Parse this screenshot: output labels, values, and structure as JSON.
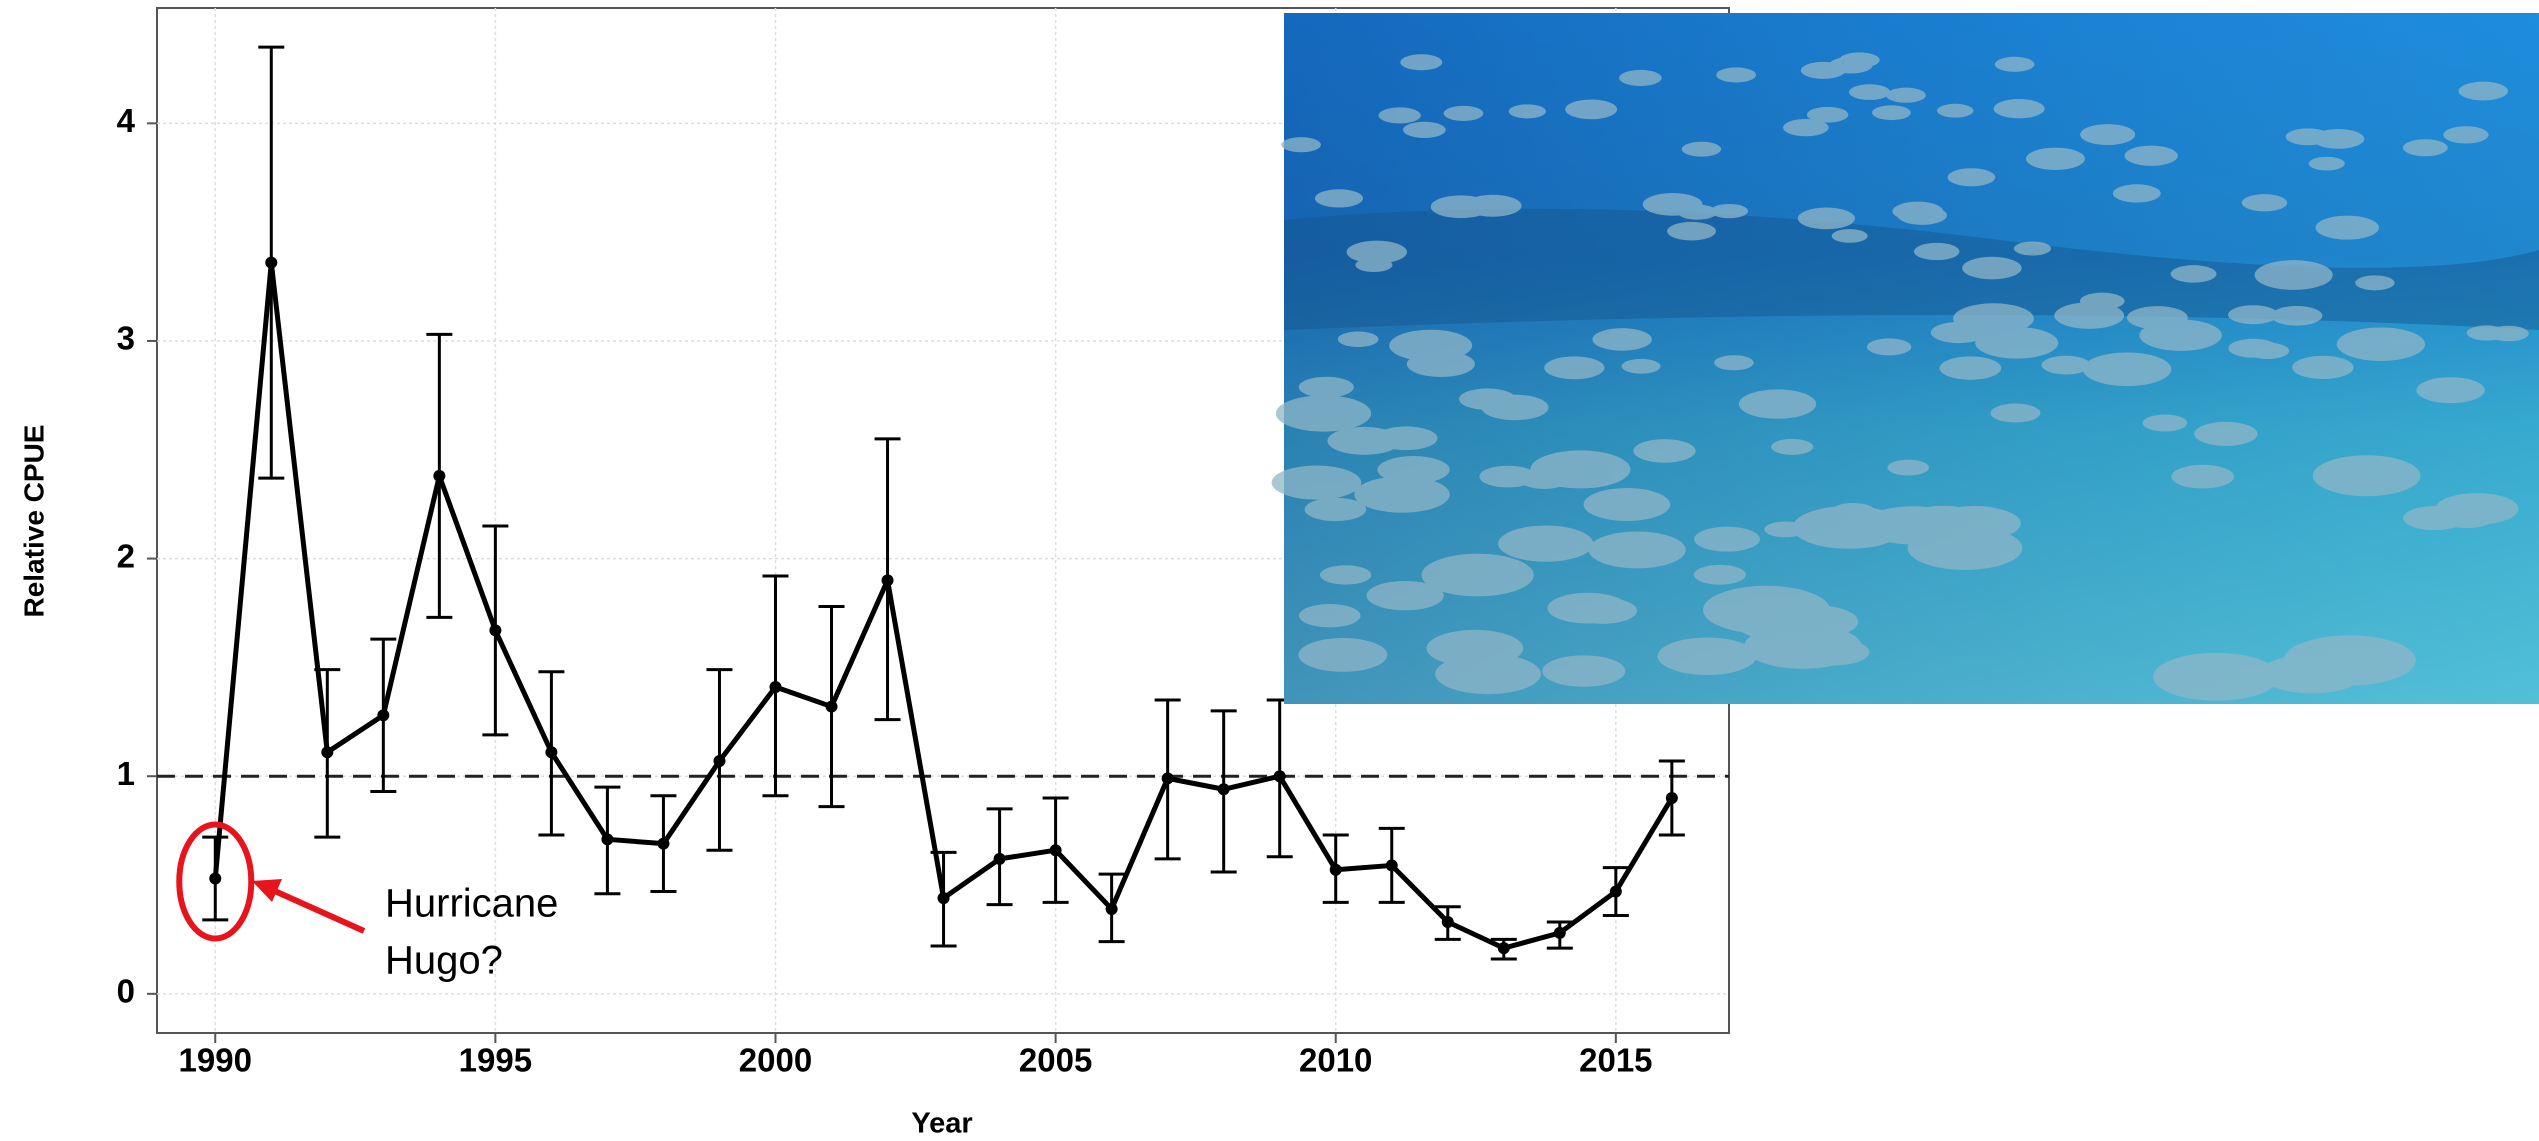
{
  "chart_data": {
    "type": "line",
    "xlabel": "Year",
    "ylabel": "Relative CPUE",
    "x": [
      1990,
      1991,
      1992,
      1993,
      1994,
      1995,
      1996,
      1997,
      1998,
      1999,
      2000,
      2001,
      2002,
      2003,
      2004,
      2005,
      2006,
      2007,
      2008,
      2009,
      2010,
      2011,
      2012,
      2013,
      2014,
      2015,
      2016
    ],
    "series": [
      {
        "color": "#000000",
        "values": [
          0.53,
          3.36,
          1.11,
          1.28,
          2.38,
          1.67,
          1.11,
          0.71,
          0.69,
          1.07,
          1.41,
          1.32,
          1.9,
          0.44,
          0.62,
          0.66,
          0.39,
          0.99,
          0.94,
          1.0,
          0.57,
          0.59,
          0.33,
          0.21,
          0.28,
          0.47,
          0.9
        ],
        "lower": [
          0.34,
          2.37,
          0.72,
          0.93,
          1.73,
          1.19,
          0.73,
          0.46,
          0.47,
          0.66,
          0.91,
          0.86,
          1.26,
          0.22,
          0.41,
          0.42,
          0.24,
          0.62,
          0.56,
          0.63,
          0.42,
          0.42,
          0.25,
          0.16,
          0.21,
          0.36,
          0.73
        ],
        "upper": [
          0.72,
          4.35,
          1.49,
          1.63,
          3.03,
          2.15,
          1.48,
          0.95,
          0.91,
          1.49,
          1.92,
          1.78,
          2.55,
          0.65,
          0.85,
          0.9,
          0.55,
          1.35,
          1.3,
          1.35,
          0.73,
          0.76,
          0.4,
          0.25,
          0.33,
          0.58,
          1.07
        ]
      }
    ],
    "reference_line": 1,
    "xlim": [
      1988.96,
      2017.02
    ],
    "ylim": [
      -0.18,
      4.53
    ],
    "xticks": [
      1990,
      1995,
      2000,
      2005,
      2010,
      2015
    ],
    "yticks": [
      0,
      1,
      2,
      3,
      4
    ],
    "grid": true,
    "annotation": {
      "lines": [
        "Hurricane",
        "Hugo?"
      ],
      "x": 1990,
      "color": "#e8141b"
    }
  }
}
